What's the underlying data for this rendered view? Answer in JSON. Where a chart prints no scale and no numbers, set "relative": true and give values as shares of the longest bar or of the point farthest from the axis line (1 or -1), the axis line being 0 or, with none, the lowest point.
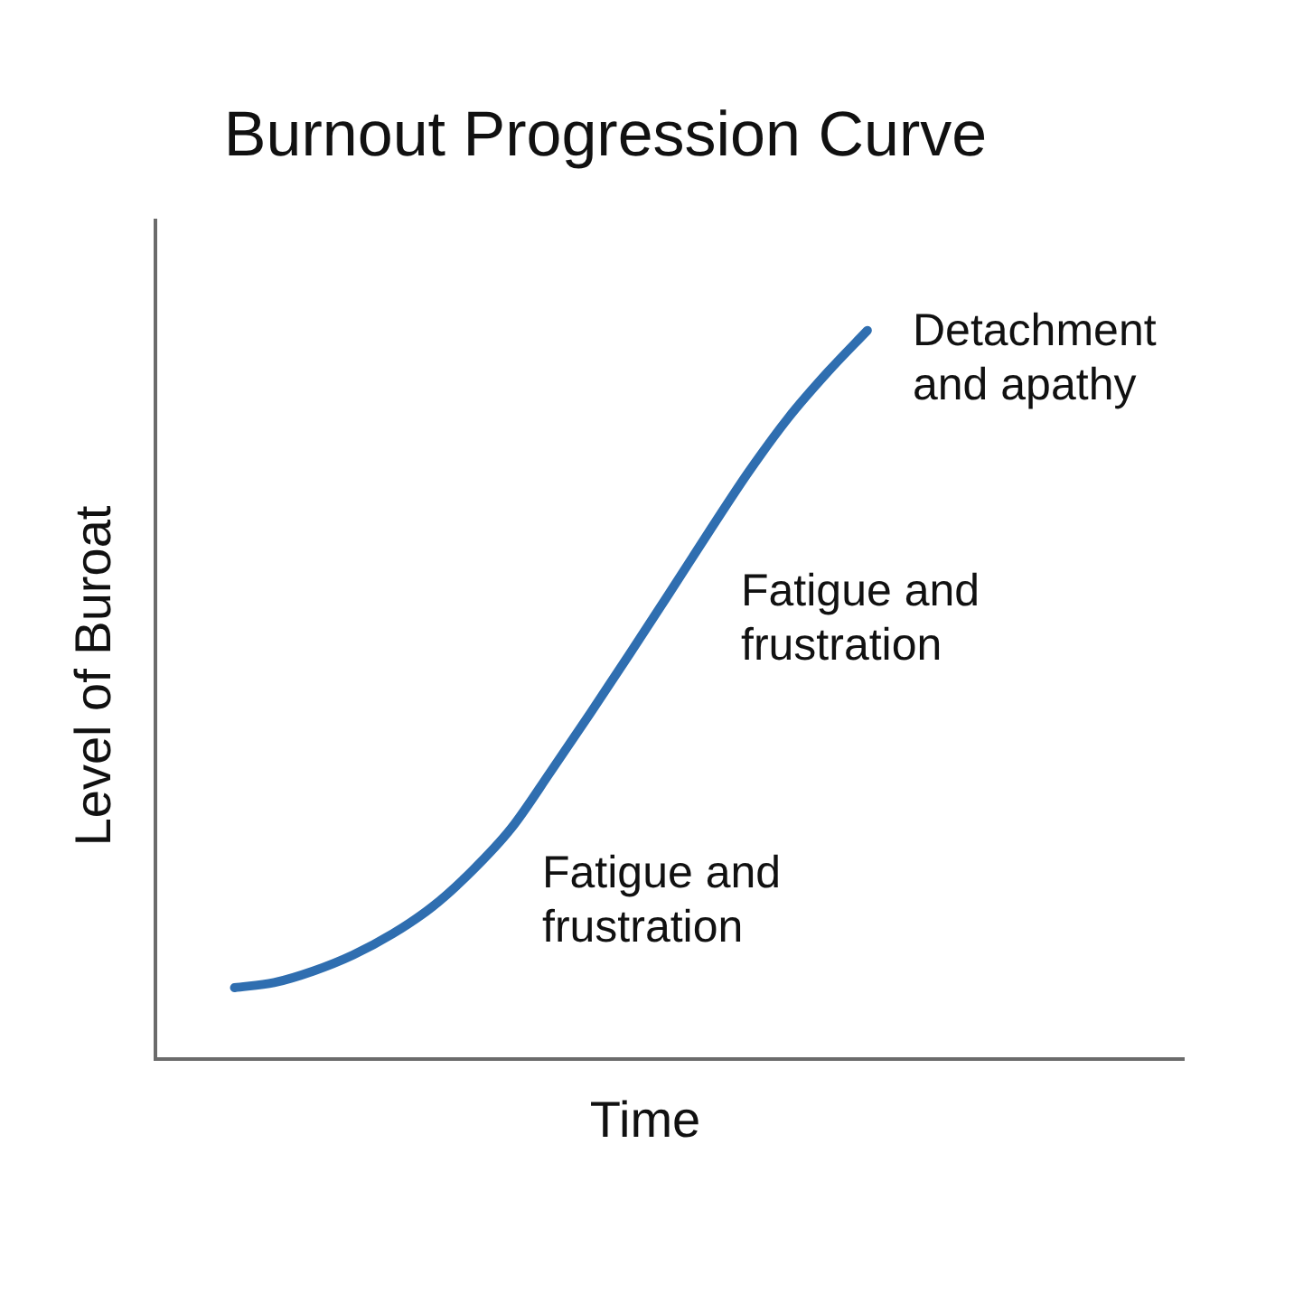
{
  "chart_data": {
    "type": "line",
    "title": "Burnout Progression Curve",
    "xlabel": "Time",
    "ylabel": "Level of Buroat",
    "relative": true,
    "categories": [
      null,
      null,
      null,
      null,
      null,
      null,
      null,
      null,
      null,
      null,
      null,
      null,
      null,
      null,
      null,
      null,
      null,
      null,
      null,
      null,
      null,
      null,
      null,
      null,
      null,
      null,
      null
    ],
    "series": [
      {
        "color": "#2f6eb0",
        "values": [
          null,
          null,
          0.098,
          0.105,
          0.121,
          0.143,
          0.172,
          0.209,
          0.258,
          0.317,
          0.395,
          0.475,
          0.557,
          0.64,
          0.724,
          0.806,
          0.88,
          0.943,
          1,
          null,
          null,
          null,
          null,
          null,
          null,
          null,
          null
        ]
      }
    ],
    "annotations": [
      "Detachment and apathy",
      "Fatigue and frustration",
      "Fatigue and frustration"
    ]
  }
}
